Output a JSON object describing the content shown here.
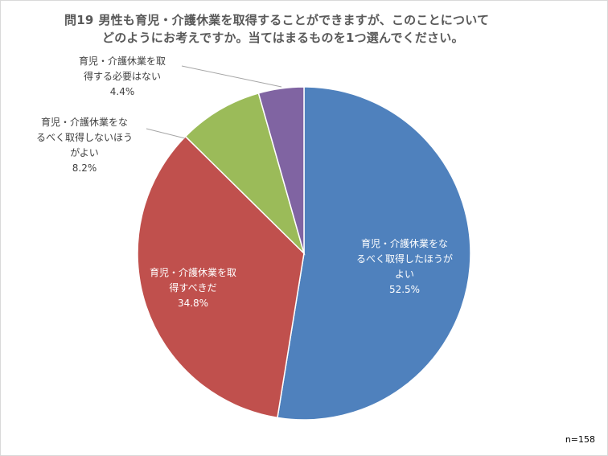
{
  "title": {
    "number": "問19",
    "line1": "男性も育児・介護休業を取得することができますが、このことについて",
    "line2": "どのようにお考えですか。当てはまるものを1つ選んでください。"
  },
  "sample_note": "n=158",
  "chart_data": {
    "type": "pie",
    "title": "問19 男性も育児・介護休業を取得することができますが、このことについてどのようにお考えですか。当てはまるものを1つ選んでください。",
    "unit": "%",
    "start": "12 o'clock, clockwise",
    "slices": [
      {
        "label_lines": [
          "育児・介護休業をな",
          "るべく取得したほうが",
          "よい"
        ],
        "value": 52.5,
        "value_text": "52.5%",
        "color": "#4f81bd"
      },
      {
        "label_lines": [
          "育児・介護休業を取",
          "得すべきだ"
        ],
        "value": 34.8,
        "value_text": "34.8%",
        "color": "#c0504d"
      },
      {
        "label_lines": [
          "育児・介護休業をな",
          "るべく取得しないほう",
          "がよい"
        ],
        "value": 8.2,
        "value_text": "8.2%",
        "color": "#9bbb59"
      },
      {
        "label_lines": [
          "育児・介護休業を取",
          "得する必要はない"
        ],
        "value": 4.4,
        "value_text": "4.4%",
        "color": "#8064a2"
      }
    ]
  }
}
